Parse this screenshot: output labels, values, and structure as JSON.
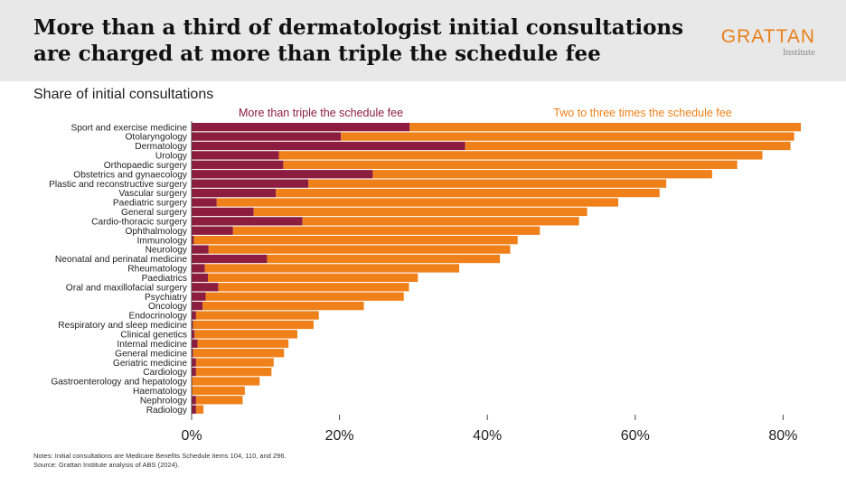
{
  "title": "More than a third of dermatologist initial consultations are charged at more than triple the schedule fee",
  "logo": {
    "main": "GRATTAN",
    "sub": "Institute"
  },
  "subtitle": "Share of initial consultations",
  "notes": [
    "Notes: Initial consultations are Medicare Benefits Schedule items 104, 110, and 296.",
    "Source: Grattan Institute analysis of ABS (2024)."
  ],
  "colors": {
    "triple": "#8c1d40",
    "two_to_three": "#f08019",
    "header_bg": "#e8e8e8"
  },
  "chart_data": {
    "type": "bar",
    "orientation": "horizontal",
    "stacked": true,
    "categories": [
      "Sport and exercise medicine",
      "Otolaryngology",
      "Dermatology",
      "Urology",
      "Orthopaedic surgery",
      "Obstetrics and gynaecology",
      "Plastic and reconstructive surgery",
      "Vascular surgery",
      "Paediatric surgery",
      "General surgery",
      "Cardio-thoracic surgery",
      "Ophthalmology",
      "Immunology",
      "Neurology",
      "Neonatal and perinatal medicine",
      "Rheumatology",
      "Paediatrics",
      "Oral and maxillofacial surgery",
      "Psychiatry",
      "Oncology",
      "Endocrinology",
      "Respiratory and sleep medicine",
      "Clinical genetics",
      "Internal medicine",
      "General medicine",
      "Geriatric medicine",
      "Cardiology",
      "Gastroenterology and hepatology",
      "Haematology",
      "Nephrology",
      "Radiology"
    ],
    "series": [
      {
        "name": "More than triple the schedule fee",
        "values": [
          29.5,
          20.2,
          37.0,
          11.8,
          12.4,
          24.5,
          15.8,
          11.4,
          3.4,
          8.4,
          15.0,
          5.6,
          0.3,
          2.3,
          10.2,
          1.8,
          2.2,
          3.6,
          1.9,
          1.5,
          0.6,
          0.2,
          0.4,
          0.8,
          0.2,
          0.6,
          0.6,
          0.0,
          0.0,
          0.6,
          0.6
        ]
      },
      {
        "name": "Two to three times the schedule fee",
        "values": [
          52.9,
          61.3,
          44.0,
          65.4,
          61.4,
          45.9,
          48.4,
          51.9,
          54.3,
          45.1,
          37.4,
          41.5,
          43.8,
          40.8,
          31.5,
          34.4,
          28.4,
          25.8,
          26.8,
          21.8,
          16.6,
          16.3,
          13.9,
          12.3,
          12.3,
          10.5,
          10.2,
          9.2,
          7.2,
          6.3,
          1.0
        ]
      }
    ],
    "xlim": [
      0,
      85
    ],
    "xticks": [
      0,
      20,
      40,
      60,
      80
    ],
    "xtick_labels": [
      "0%",
      "20%",
      "40%",
      "60%",
      "80%"
    ],
    "legend_placement": "top, as inline labels",
    "grid": false
  }
}
